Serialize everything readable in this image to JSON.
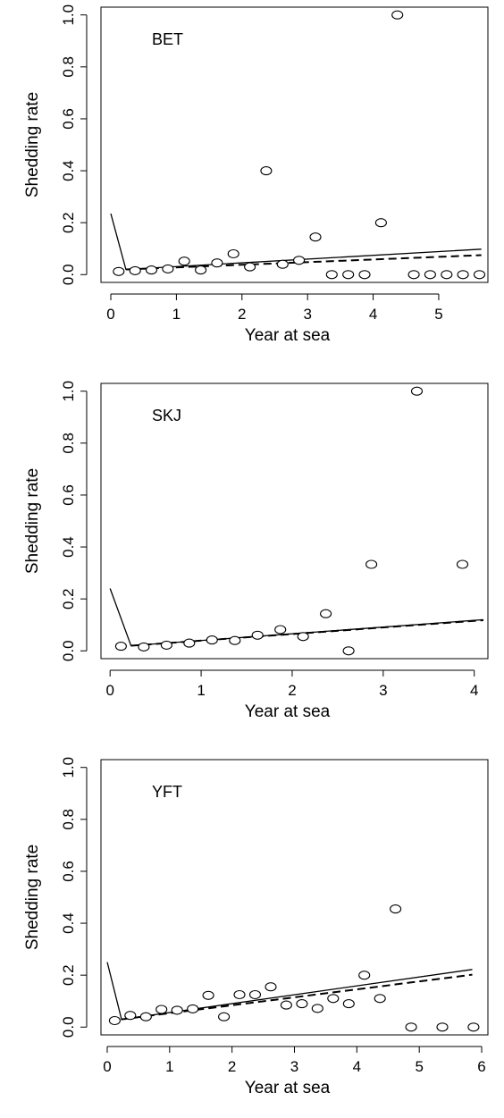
{
  "chart_data": [
    {
      "type": "scatter",
      "panel_label": "BET",
      "xlabel": "Year at sea",
      "ylabel": "Shedding rate",
      "xlim": [
        -0.15,
        5.75
      ],
      "ylim": [
        -0.03,
        1.03
      ],
      "xticks": [
        0,
        1,
        2,
        3,
        4,
        5
      ],
      "yticks": [
        0.0,
        0.2,
        0.4,
        0.6,
        0.8,
        1.0
      ],
      "ytick_labels": [
        "0.0",
        "0.2",
        "0.4",
        "0.6",
        "0.8",
        "1.0"
      ],
      "grid": false,
      "points": {
        "x": [
          0.12,
          0.37,
          0.62,
          0.87,
          1.12,
          1.37,
          1.62,
          1.87,
          2.12,
          2.37,
          2.62,
          2.87,
          3.12,
          3.37,
          3.62,
          3.87,
          4.12,
          4.37,
          4.62,
          4.87,
          5.12,
          5.37,
          5.62
        ],
        "y": [
          0.012,
          0.015,
          0.018,
          0.022,
          0.052,
          0.018,
          0.045,
          0.08,
          0.03,
          0.4,
          0.04,
          0.055,
          0.145,
          0.0,
          0.0,
          0.0,
          0.2,
          1.0,
          0.0,
          0.0,
          0.0,
          0.0,
          0.0
        ]
      },
      "lines": [
        {
          "style": "solid",
          "x": [
            0,
            0.23,
            5.65
          ],
          "y": [
            0.235,
            0.02,
            0.098
          ]
        },
        {
          "style": "dashed",
          "x": [
            0.23,
            5.65
          ],
          "y": [
            0.02,
            0.075
          ]
        }
      ]
    },
    {
      "type": "scatter",
      "panel_label": "SKJ",
      "xlabel": "Year at sea",
      "ylabel": "Shedding rate",
      "xlim": [
        -0.1,
        4.15
      ],
      "ylim": [
        -0.03,
        1.03
      ],
      "xticks": [
        0,
        1,
        2,
        3,
        4
      ],
      "yticks": [
        0.0,
        0.2,
        0.4,
        0.6,
        0.8,
        1.0
      ],
      "ytick_labels": [
        "0.0",
        "0.2",
        "0.4",
        "0.6",
        "0.8",
        "1.0"
      ],
      "grid": false,
      "points": {
        "x": [
          0.12,
          0.37,
          0.62,
          0.87,
          1.12,
          1.37,
          1.62,
          1.87,
          2.12,
          2.37,
          2.62,
          2.87,
          3.37,
          3.87
        ],
        "y": [
          0.018,
          0.015,
          0.022,
          0.03,
          0.042,
          0.04,
          0.06,
          0.082,
          0.055,
          0.143,
          0.0,
          0.333,
          1.0,
          0.333
        ]
      },
      "lines": [
        {
          "style": "solid",
          "x": [
            0,
            0.23,
            4.1
          ],
          "y": [
            0.24,
            0.02,
            0.12
          ]
        },
        {
          "style": "dashed",
          "x": [
            0.23,
            4.1
          ],
          "y": [
            0.02,
            0.118
          ]
        }
      ]
    },
    {
      "type": "scatter",
      "panel_label": "YFT",
      "xlabel": "Year at sea",
      "ylabel": "Shedding rate",
      "xlim": [
        -0.1,
        6.1
      ],
      "ylim": [
        -0.03,
        1.03
      ],
      "xticks": [
        0,
        1,
        2,
        3,
        4,
        5,
        6
      ],
      "yticks": [
        0.0,
        0.2,
        0.4,
        0.6,
        0.8,
        1.0
      ],
      "ytick_labels": [
        "0.0",
        "0.2",
        "0.4",
        "0.6",
        "0.8",
        "1.0"
      ],
      "grid": false,
      "points": {
        "x": [
          0.12,
          0.37,
          0.62,
          0.87,
          1.12,
          1.37,
          1.62,
          1.87,
          2.12,
          2.37,
          2.62,
          2.87,
          3.12,
          3.37,
          3.62,
          3.87,
          4.12,
          4.37,
          4.62,
          4.87,
          5.37,
          5.87
        ],
        "y": [
          0.025,
          0.045,
          0.04,
          0.068,
          0.065,
          0.07,
          0.122,
          0.04,
          0.125,
          0.125,
          0.155,
          0.085,
          0.09,
          0.072,
          0.11,
          0.09,
          0.2,
          0.11,
          0.455,
          0.0,
          0.0,
          0.0
        ]
      },
      "lines": [
        {
          "style": "solid",
          "x": [
            0,
            0.23,
            5.85
          ],
          "y": [
            0.25,
            0.03,
            0.222
          ]
        },
        {
          "style": "dashed",
          "x": [
            0.23,
            5.85
          ],
          "y": [
            0.03,
            0.202
          ]
        }
      ]
    }
  ]
}
